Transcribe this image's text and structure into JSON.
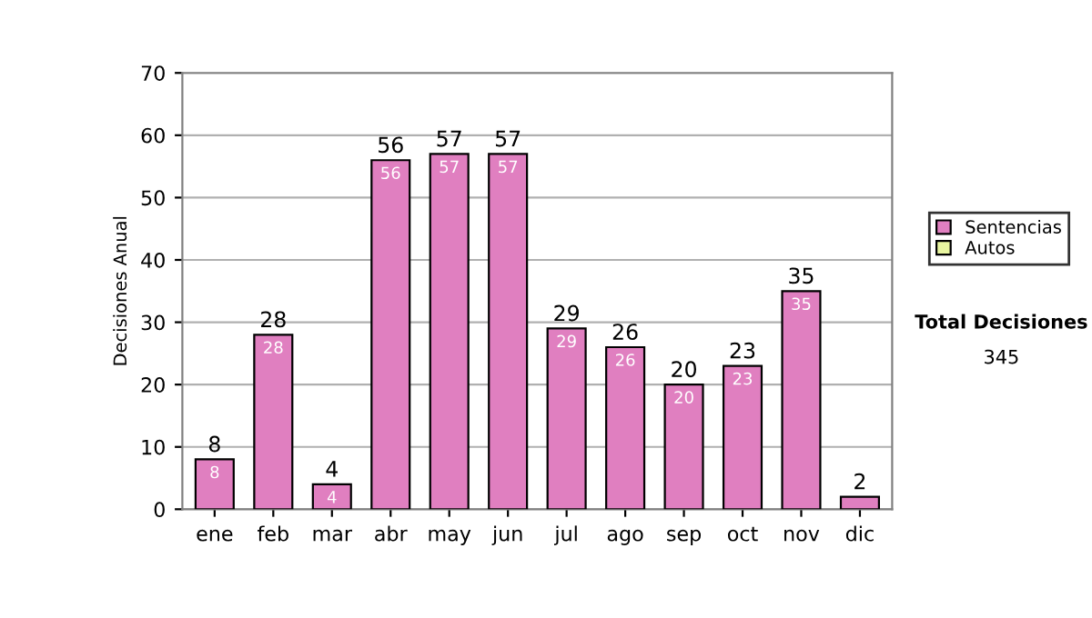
{
  "chart_data": {
    "type": "bar",
    "ylabel": "Decisiones Anual",
    "categories": [
      "ene",
      "feb",
      "mar",
      "abr",
      "may",
      "jun",
      "jul",
      "ago",
      "sep",
      "oct",
      "nov",
      "dic"
    ],
    "series": [
      {
        "name": "Sentencias",
        "color": "#e07fc0",
        "values": [
          8,
          28,
          4,
          56,
          57,
          57,
          29,
          26,
          20,
          23,
          35,
          2
        ],
        "value_labels": [
          "8",
          "28",
          "4",
          "56",
          "57",
          "57",
          "29",
          "26",
          "20",
          "23",
          "35",
          null
        ]
      },
      {
        "name": "Autos",
        "color": "#e8f5a0",
        "values": [
          null,
          null,
          null,
          null,
          null,
          null,
          null,
          null,
          null,
          null,
          null,
          null
        ]
      }
    ],
    "stacked": true,
    "totals": [
      "8",
      "28",
      "4",
      "56",
      "57",
      "57",
      "29",
      "26",
      "20",
      "23",
      "35",
      "2"
    ],
    "ylim": [
      0,
      70
    ],
    "yticks": [
      0,
      10,
      20,
      30,
      40,
      50,
      60,
      70
    ],
    "grid": "y",
    "legend": "right",
    "annotations": [
      "Total Decisiones",
      "345"
    ]
  }
}
